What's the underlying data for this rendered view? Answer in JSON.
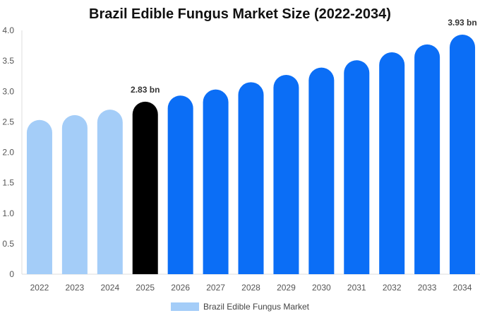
{
  "chart_data": {
    "type": "bar",
    "title": "Brazil Edible Fungus Market Size (2022-2034)",
    "xlabel": "",
    "ylabel": "",
    "categories": [
      "2022",
      "2023",
      "2024",
      "2025",
      "2026",
      "2027",
      "2028",
      "2029",
      "2030",
      "2031",
      "2032",
      "2033",
      "2034"
    ],
    "series": [
      {
        "name": "Brazil Edible Fungus Market",
        "values": [
          2.53,
          2.61,
          2.7,
          2.83,
          2.93,
          3.03,
          3.15,
          3.27,
          3.39,
          3.51,
          3.64,
          3.77,
          3.93
        ]
      }
    ],
    "ylim": [
      0,
      4.0
    ],
    "yticks": [
      "0",
      "0.5",
      "1.0",
      "1.5",
      "2.0",
      "2.5",
      "3.0",
      "3.5",
      "4.0"
    ],
    "data_labels": [
      {
        "category": "2025",
        "text": "2.83 bn"
      },
      {
        "category": "2034",
        "text": "3.93 bn"
      }
    ],
    "bar_colors": {
      "historical": "#a4cdf8",
      "base_year": "#000000",
      "forecast": "#0b6ef6"
    },
    "historical_categories": [
      "2022",
      "2023",
      "2024"
    ],
    "base_category": "2025",
    "grid": false,
    "legend_position": "bottom-center"
  }
}
